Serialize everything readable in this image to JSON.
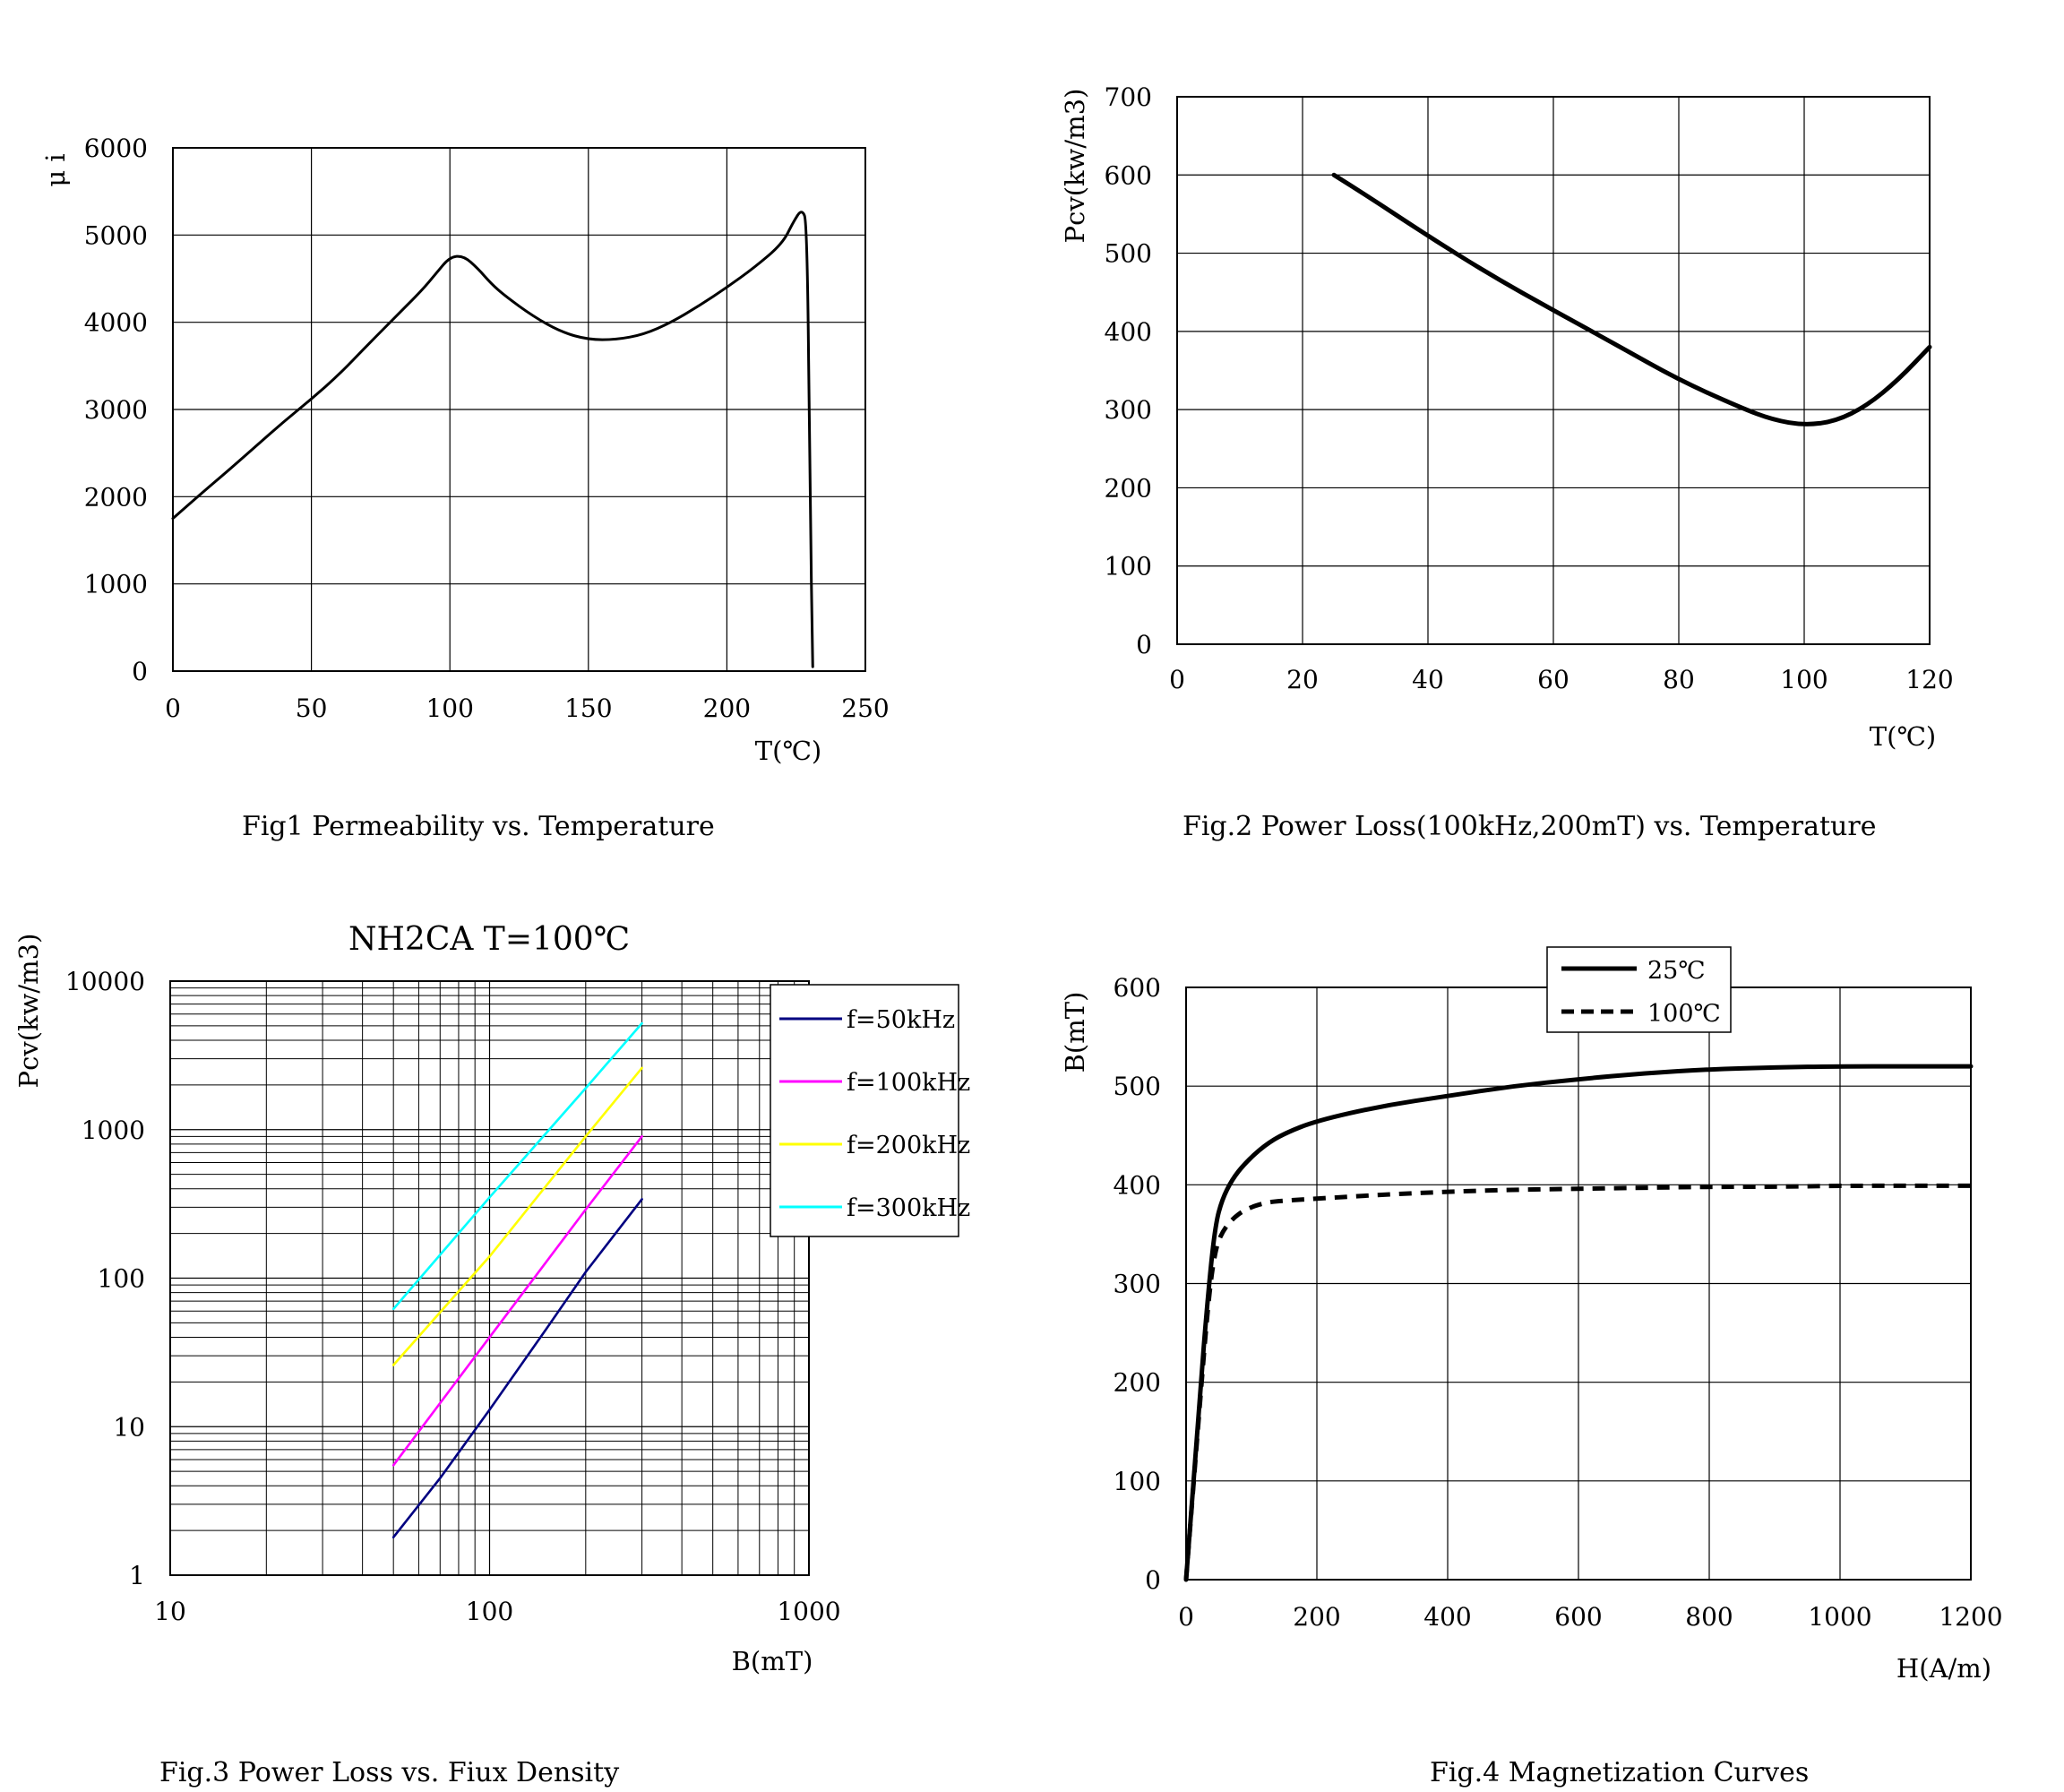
{
  "chart_data": [
    {
      "id": "fig1",
      "type": "line",
      "title": "",
      "caption": "Fig1 Permeability vs. Temperature",
      "xlabel": "T(℃)",
      "ylabel": "μ i",
      "xlim": [
        0,
        250
      ],
      "ylim": [
        0,
        6000
      ],
      "xticks": [
        "0",
        "50",
        "100",
        "150",
        "200",
        "250"
      ],
      "yticks": [
        "0",
        "1000",
        "2000",
        "3000",
        "4000",
        "5000",
        "6000"
      ],
      "grid": true,
      "series": [
        {
          "name": "μi",
          "color": "#000000",
          "x": [
            0,
            10,
            20,
            30,
            40,
            50,
            60,
            70,
            80,
            90,
            95,
            100,
            105,
            110,
            115,
            120,
            130,
            140,
            150,
            160,
            170,
            180,
            190,
            200,
            210,
            220,
            224,
            227,
            229,
            230,
            231
          ],
          "y": [
            1750,
            2030,
            2300,
            2580,
            2860,
            3120,
            3400,
            3730,
            4050,
            4370,
            4560,
            4750,
            4760,
            4620,
            4440,
            4300,
            4070,
            3890,
            3800,
            3800,
            3860,
            4000,
            4190,
            4400,
            4630,
            4900,
            5150,
            5300,
            5150,
            2000,
            50
          ]
        }
      ]
    },
    {
      "id": "fig2",
      "type": "line",
      "title": "",
      "caption": "Fig.2 Power Loss(100kHz,200mT) vs. Temperature",
      "xlabel": "T(℃)",
      "ylabel": "Pcv(kw/m3)",
      "xlim": [
        0,
        120
      ],
      "ylim": [
        0,
        700
      ],
      "xticks": [
        "0",
        "20",
        "40",
        "60",
        "80",
        "100",
        "120"
      ],
      "yticks": [
        "0",
        "100",
        "200",
        "300",
        "400",
        "500",
        "600",
        "700"
      ],
      "grid": true,
      "series": [
        {
          "name": "Pcv",
          "color": "#000000",
          "x": [
            25,
            30,
            40,
            50,
            60,
            70,
            80,
            90,
            95,
            100,
            105,
            110,
            115,
            120
          ],
          "y": [
            600,
            575,
            522,
            472,
            427,
            383,
            338,
            302,
            287,
            280,
            285,
            305,
            338,
            380
          ]
        }
      ]
    },
    {
      "id": "fig3",
      "type": "line",
      "title": "NH2CA T=100℃",
      "caption": "Fig.3 Power Loss vs. Fiux Density",
      "xlabel": "B(mT)",
      "ylabel": "Pcv(kw/m3)",
      "xscale": "log",
      "yscale": "log",
      "xlim": [
        10,
        1000
      ],
      "ylim": [
        1,
        10000
      ],
      "xticks": [
        "10",
        "100",
        "1000"
      ],
      "yticks": [
        "1",
        "10",
        "100",
        "1000",
        "10000"
      ],
      "grid": true,
      "legend": "top-right",
      "series": [
        {
          "name": "f=50kHz",
          "color": "#000080",
          "x": [
            50,
            70,
            100,
            150,
            200,
            300
          ],
          "y": [
            1.8,
            4.5,
            13,
            45,
            110,
            340
          ]
        },
        {
          "name": "f=100kHz",
          "color": "#ff00ff",
          "x": [
            50,
            100,
            200,
            300
          ],
          "y": [
            5.5,
            40,
            290,
            900
          ]
        },
        {
          "name": "f=200kHz",
          "color": "#ffff00",
          "x": [
            50,
            100,
            200,
            300
          ],
          "y": [
            26,
            140,
            900,
            2600
          ]
        },
        {
          "name": "f=300kHz",
          "color": "#00ffff",
          "x": [
            50,
            100,
            200,
            300
          ],
          "y": [
            62,
            350,
            1900,
            5200
          ]
        }
      ]
    },
    {
      "id": "fig4",
      "type": "line",
      "title": "",
      "caption": "Fig.4 Magnetization Curves",
      "xlabel": "H(A/m)",
      "ylabel": "B(mT)",
      "xlim": [
        0,
        1200
      ],
      "ylim": [
        0,
        600
      ],
      "xticks": [
        "0",
        "200",
        "400",
        "600",
        "800",
        "1000",
        "1200"
      ],
      "yticks": [
        "0",
        "100",
        "200",
        "300",
        "400",
        "500",
        "600"
      ],
      "grid": true,
      "legend": "top-center",
      "series": [
        {
          "name": "25℃",
          "color": "#000000",
          "dash": false,
          "x": [
            0,
            20,
            35,
            45,
            55,
            70,
            90,
            120,
            150,
            200,
            300,
            400,
            500,
            600,
            700,
            800,
            900,
            1000,
            1100,
            1200
          ],
          "y": [
            0,
            180,
            300,
            360,
            385,
            405,
            422,
            440,
            452,
            465,
            480,
            490,
            500,
            507,
            513,
            517,
            519,
            520,
            520,
            520
          ]
        },
        {
          "name": "100℃",
          "color": "#000000",
          "dash": true,
          "x": [
            0,
            20,
            35,
            45,
            55,
            70,
            90,
            120,
            150,
            200,
            300,
            400,
            500,
            600,
            700,
            800,
            900,
            1000,
            1100,
            1200
          ],
          "y": [
            0,
            170,
            290,
            335,
            352,
            365,
            375,
            382,
            384,
            386,
            390,
            393,
            395,
            396,
            397,
            398,
            398,
            399,
            399,
            399
          ]
        }
      ]
    }
  ]
}
